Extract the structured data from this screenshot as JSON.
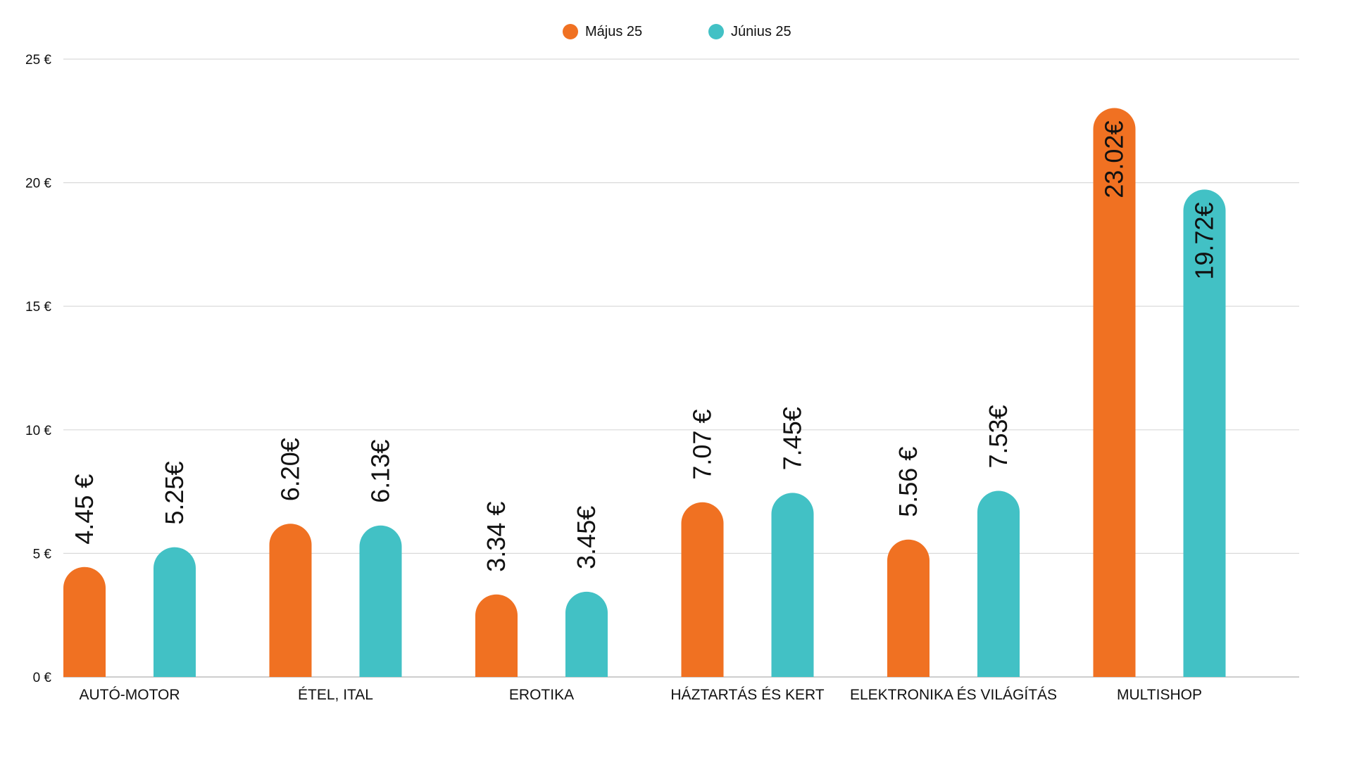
{
  "chart_data": {
    "type": "bar",
    "title": "",
    "xlabel": "",
    "ylabel": "",
    "ylim": [
      0,
      25
    ],
    "grid": true,
    "legend_position": "top-center",
    "y_ticks": [
      {
        "value": 0,
        "label": "0 €"
      },
      {
        "value": 5,
        "label": "5 €"
      },
      {
        "value": 10,
        "label": "10 €"
      },
      {
        "value": 15,
        "label": "15 €"
      },
      {
        "value": 20,
        "label": "20 €"
      },
      {
        "value": 25,
        "label": "25 €"
      }
    ],
    "categories": [
      "AUTÓ-MOTOR",
      "ÉTEL, ITAL",
      "EROTIKA",
      "HÁZTARTÁS ÉS KERT",
      "ELEKTRONIKA ÉS VILÁGÍTÁS",
      "MULTISHOP"
    ],
    "series": [
      {
        "name": "Május 25",
        "color": "#f07122",
        "values": [
          4.45,
          6.2,
          3.34,
          7.07,
          5.56,
          23.02
        ],
        "labels": [
          "4.45 €",
          "6.20€",
          "3.34 €",
          "7.07 €",
          "5.56 €",
          "23.02€"
        ]
      },
      {
        "name": "Június 25",
        "color": "#42c1c5",
        "values": [
          5.25,
          6.13,
          3.45,
          7.45,
          7.53,
          19.72
        ],
        "labels": [
          "5.25€",
          "6.13€",
          "3.45€",
          "7.45€",
          "7.53€",
          "19.72€"
        ]
      }
    ]
  }
}
